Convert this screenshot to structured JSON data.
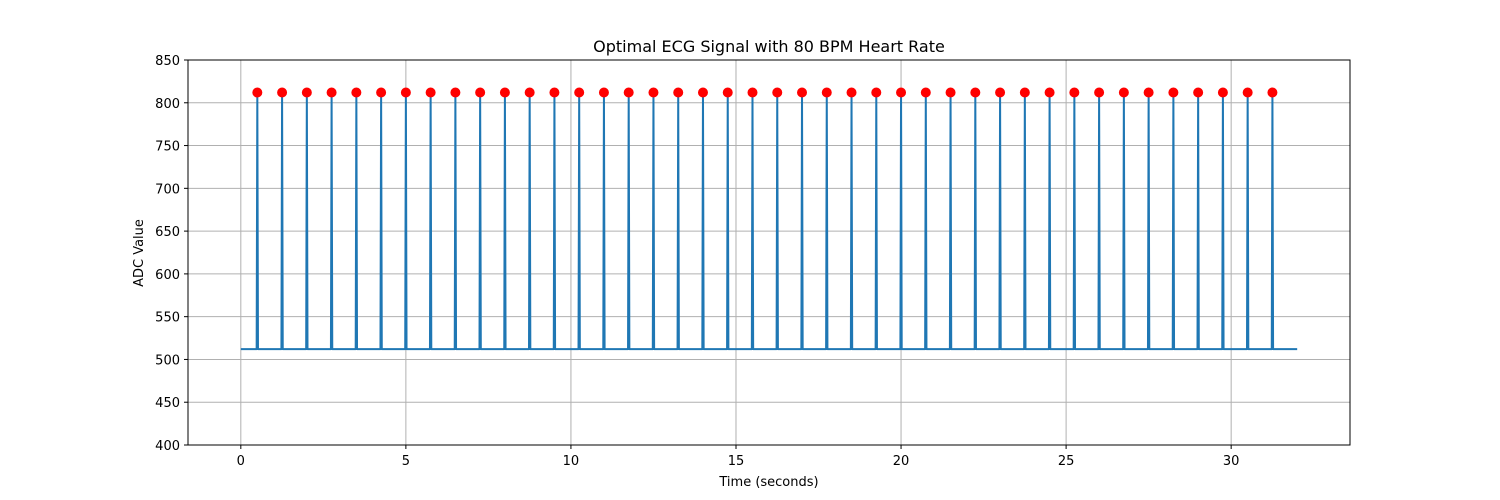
{
  "chart_data": {
    "type": "line",
    "title": "Optimal ECG Signal with 80 BPM Heart Rate",
    "xlabel": "Time (seconds)",
    "ylabel": "ADC Value",
    "xlim": [
      -1.6,
      33.6
    ],
    "ylim": [
      400,
      850
    ],
    "xticks": [
      0,
      5,
      10,
      15,
      20,
      25,
      30
    ],
    "yticks": [
      400,
      450,
      500,
      550,
      600,
      650,
      700,
      750,
      800,
      850
    ],
    "grid": true,
    "baseline": 512,
    "signal_x_range": [
      0,
      32
    ],
    "series": [
      {
        "color": "#1f77b4",
        "peak_value": 812,
        "peak_times": [
          0.5,
          1.25,
          2.0,
          2.75,
          3.5,
          4.25,
          5.0,
          5.75,
          6.5,
          7.25,
          8.0,
          8.75,
          9.5,
          10.25,
          11.0,
          11.75,
          12.5,
          13.25,
          14.0,
          14.75,
          15.5,
          16.25,
          17.0,
          17.75,
          18.5,
          19.25,
          20.0,
          20.75,
          21.5,
          22.25,
          23.0,
          23.75,
          24.5,
          25.25,
          26.0,
          26.75,
          27.5,
          28.25,
          29.0,
          29.75,
          30.5,
          31.25
        ]
      }
    ],
    "markers": {
      "color": "#ff0000",
      "value": 812
    }
  }
}
